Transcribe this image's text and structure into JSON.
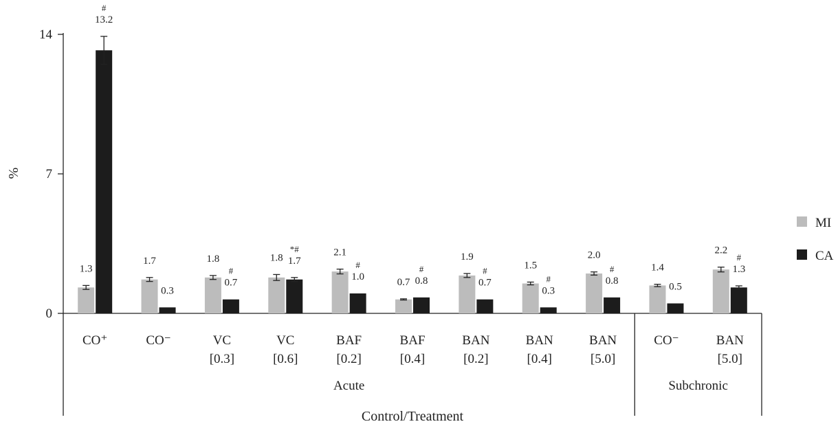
{
  "chart_data": {
    "type": "bar",
    "ylabel": "%",
    "xlabel": "Control/Treatment",
    "ylim": [
      0,
      14
    ],
    "yticks": [
      0,
      7,
      14
    ],
    "grid": false,
    "legend_position": "right",
    "categories": [
      {
        "line1": "CO⁺",
        "line2": ""
      },
      {
        "line1": "CO⁻",
        "line2": ""
      },
      {
        "line1": "VC",
        "line2": "[0.3]"
      },
      {
        "line1": "VC",
        "line2": "[0.6]"
      },
      {
        "line1": "BAF",
        "line2": "[0.2]"
      },
      {
        "line1": "BAF",
        "line2": "[0.4]"
      },
      {
        "line1": "BAN",
        "line2": "[0.2]"
      },
      {
        "line1": "BAN",
        "line2": "[0.4]"
      },
      {
        "line1": "BAN",
        "line2": "[5.0]"
      },
      {
        "line1": "CO⁻",
        "line2": ""
      },
      {
        "line1": "BAN",
        "line2": "[5.0]"
      }
    ],
    "groups": [
      {
        "label": "Acute",
        "start": 0,
        "end": 8
      },
      {
        "label": "Subchronic",
        "start": 9,
        "end": 10
      }
    ],
    "series": [
      {
        "name": "MI",
        "color": "#bcbcbc",
        "values": [
          1.3,
          1.7,
          1.8,
          1.8,
          2.1,
          0.7,
          1.9,
          1.5,
          2.0,
          1.4,
          2.2
        ],
        "labels": [
          "1.3",
          "1.7",
          "1.8",
          "1.8",
          "2.1",
          "0.7",
          "1.9",
          "1.5",
          "2.0",
          "1.4",
          "2.2"
        ],
        "errors": [
          0.1,
          0.1,
          0.1,
          0.15,
          0.12,
          0.03,
          0.1,
          0.07,
          0.08,
          0.06,
          0.12
        ],
        "marks": [
          "",
          "",
          "",
          "",
          "",
          "",
          "",
          "",
          "",
          "",
          ""
        ]
      },
      {
        "name": "CA",
        "color": "#1c1c1c",
        "values": [
          13.2,
          0.3,
          0.7,
          1.7,
          1.0,
          0.8,
          0.7,
          0.3,
          0.8,
          0.5,
          1.3
        ],
        "labels": [
          "13.2",
          "0.3",
          "0.7",
          "1.7",
          "1.0",
          "0.8",
          "0.7",
          "0.3",
          "0.8",
          "0.5",
          "1.3"
        ],
        "errors": [
          0.7,
          0,
          0,
          0.1,
          0,
          0,
          0,
          0,
          0,
          0,
          0.08
        ],
        "marks": [
          "#",
          "",
          "#",
          "*#",
          "#",
          "#",
          "#",
          "#",
          "#",
          "",
          "#"
        ]
      }
    ]
  }
}
